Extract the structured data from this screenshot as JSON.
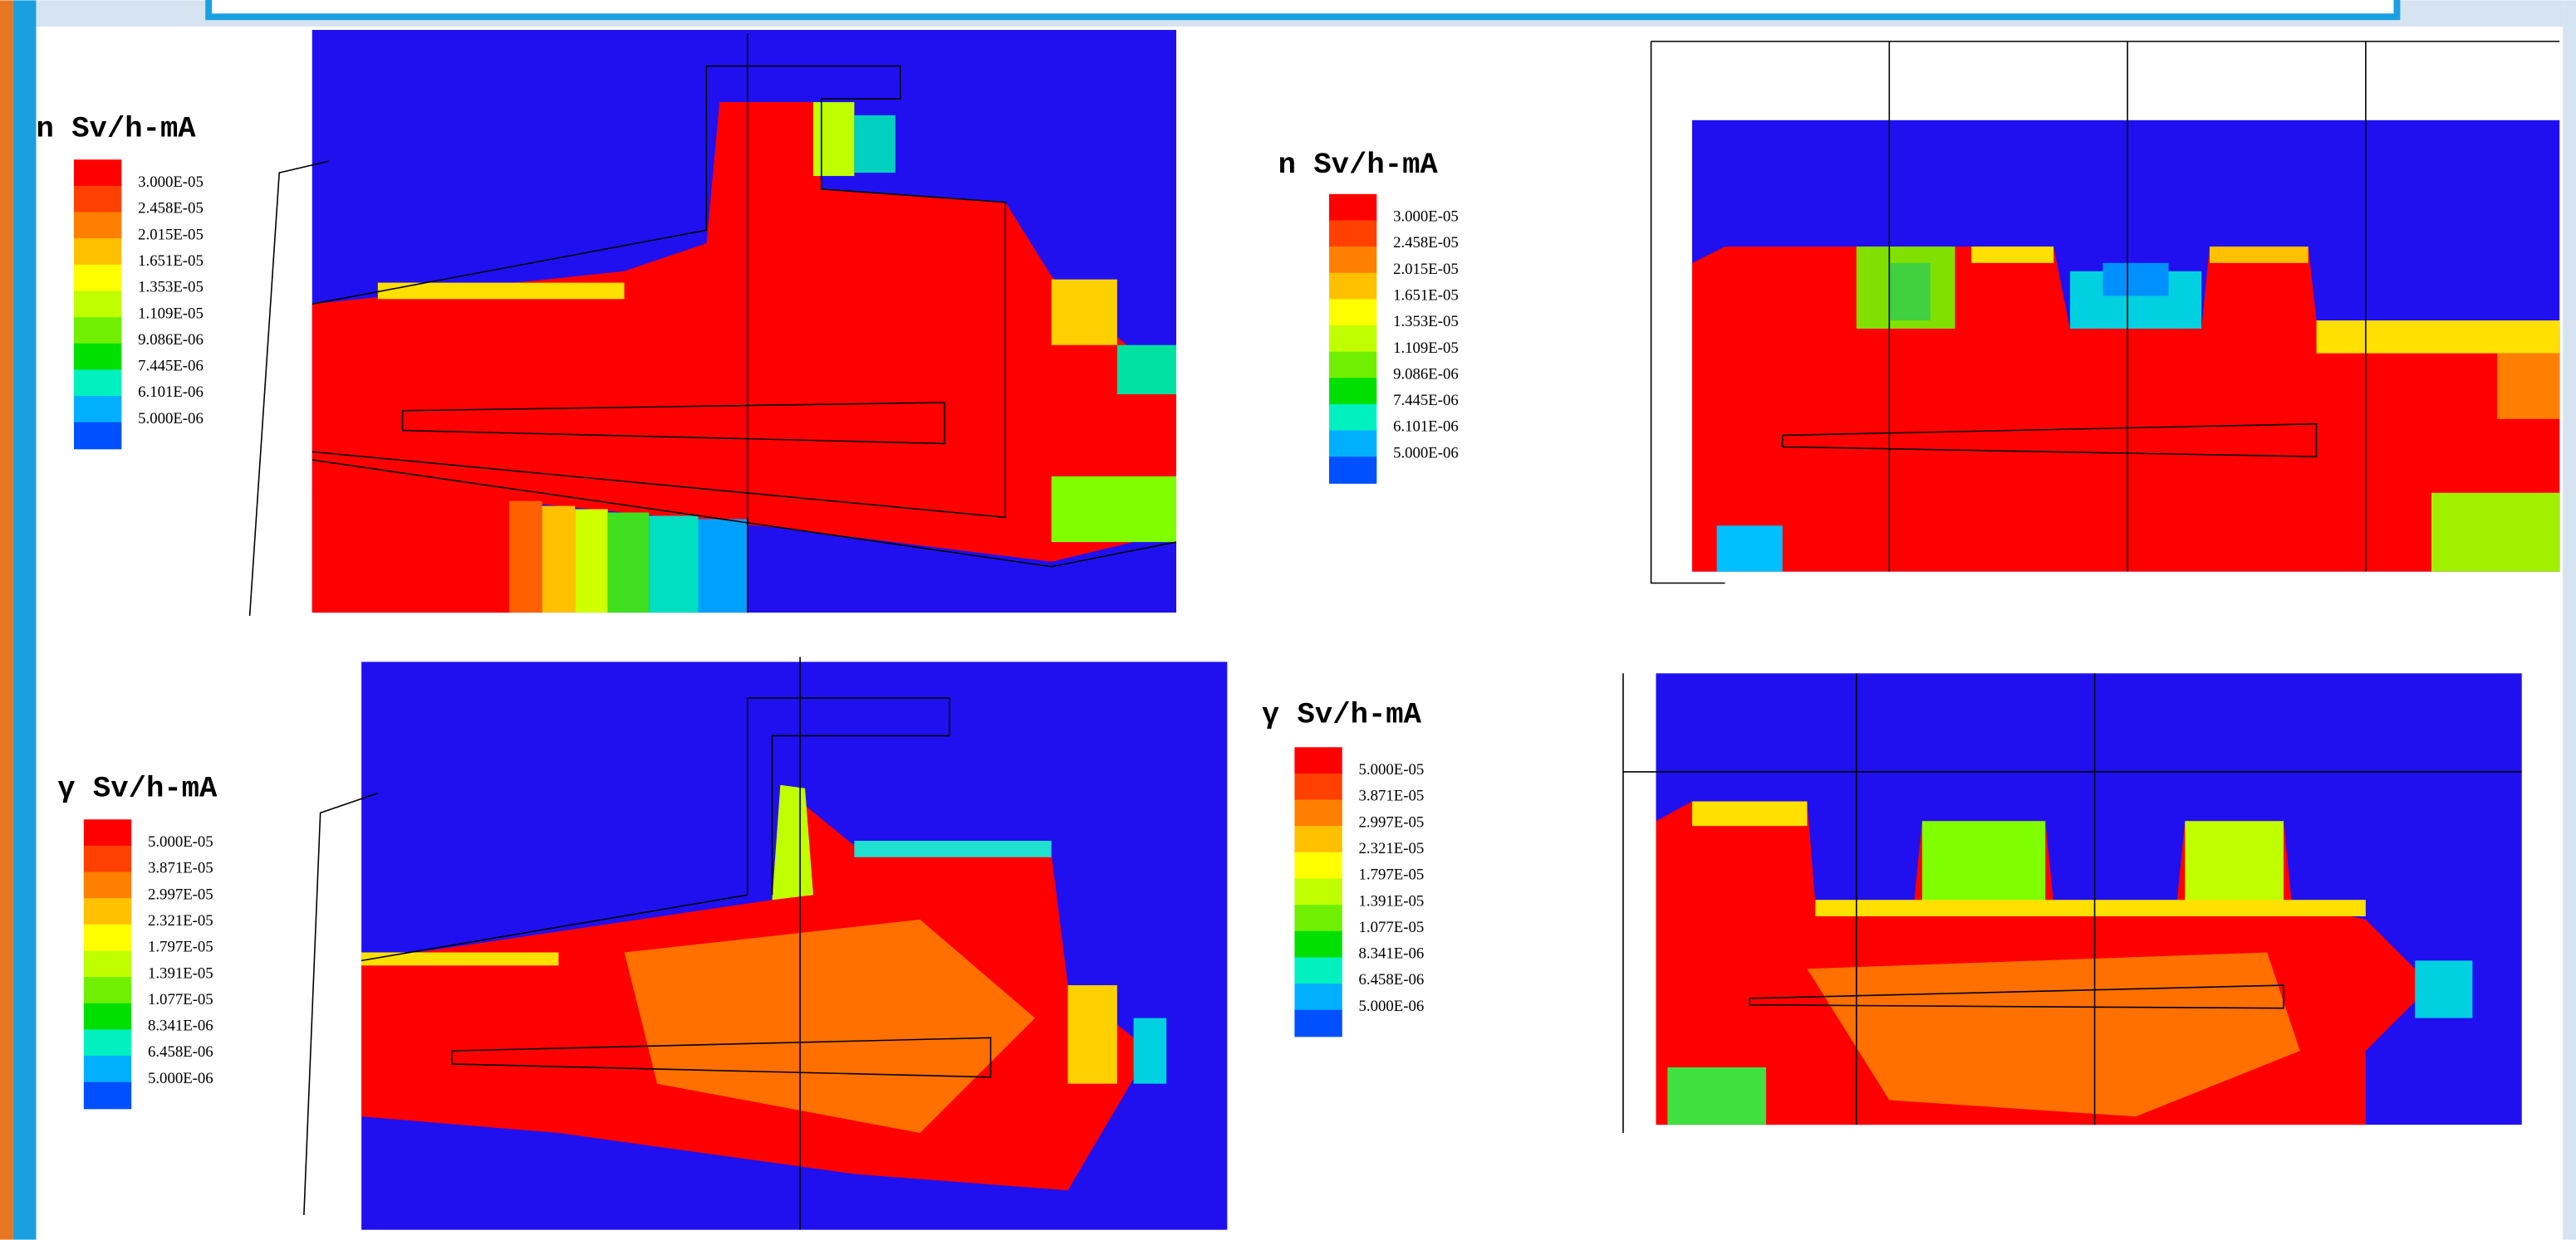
{
  "panels": [
    {
      "legend": {
        "title": "n Sv/h-mA",
        "labels": [
          "3.000E-05",
          "2.458E-05",
          "2.015E-05",
          "1.651E-05",
          "1.353E-05",
          "1.109E-05",
          "9.086E-06",
          "7.445E-06",
          "6.101E-06",
          "5.000E-06"
        ]
      }
    },
    {
      "legend": {
        "title": "n Sv/h-mA",
        "labels": [
          "3.000E-05",
          "2.458E-05",
          "2.015E-05",
          "1.651E-05",
          "1.353E-05",
          "1.109E-05",
          "9.086E-06",
          "7.445E-06",
          "6.101E-06",
          "5.000E-06"
        ]
      }
    },
    {
      "legend": {
        "title": "γ Sv/h-mA",
        "labels": [
          "5.000E-05",
          "3.871E-05",
          "2.997E-05",
          "2.321E-05",
          "1.797E-05",
          "1.391E-05",
          "1.077E-05",
          "8.341E-06",
          "6.458E-06",
          "5.000E-06"
        ]
      }
    },
    {
      "legend": {
        "title": "γ Sv/h-mA",
        "labels": [
          "5.000E-05",
          "3.871E-05",
          "2.997E-05",
          "2.321E-05",
          "1.797E-05",
          "1.391E-05",
          "1.077E-05",
          "8.341E-06",
          "6.458E-06",
          "5.000E-06"
        ]
      }
    }
  ]
}
